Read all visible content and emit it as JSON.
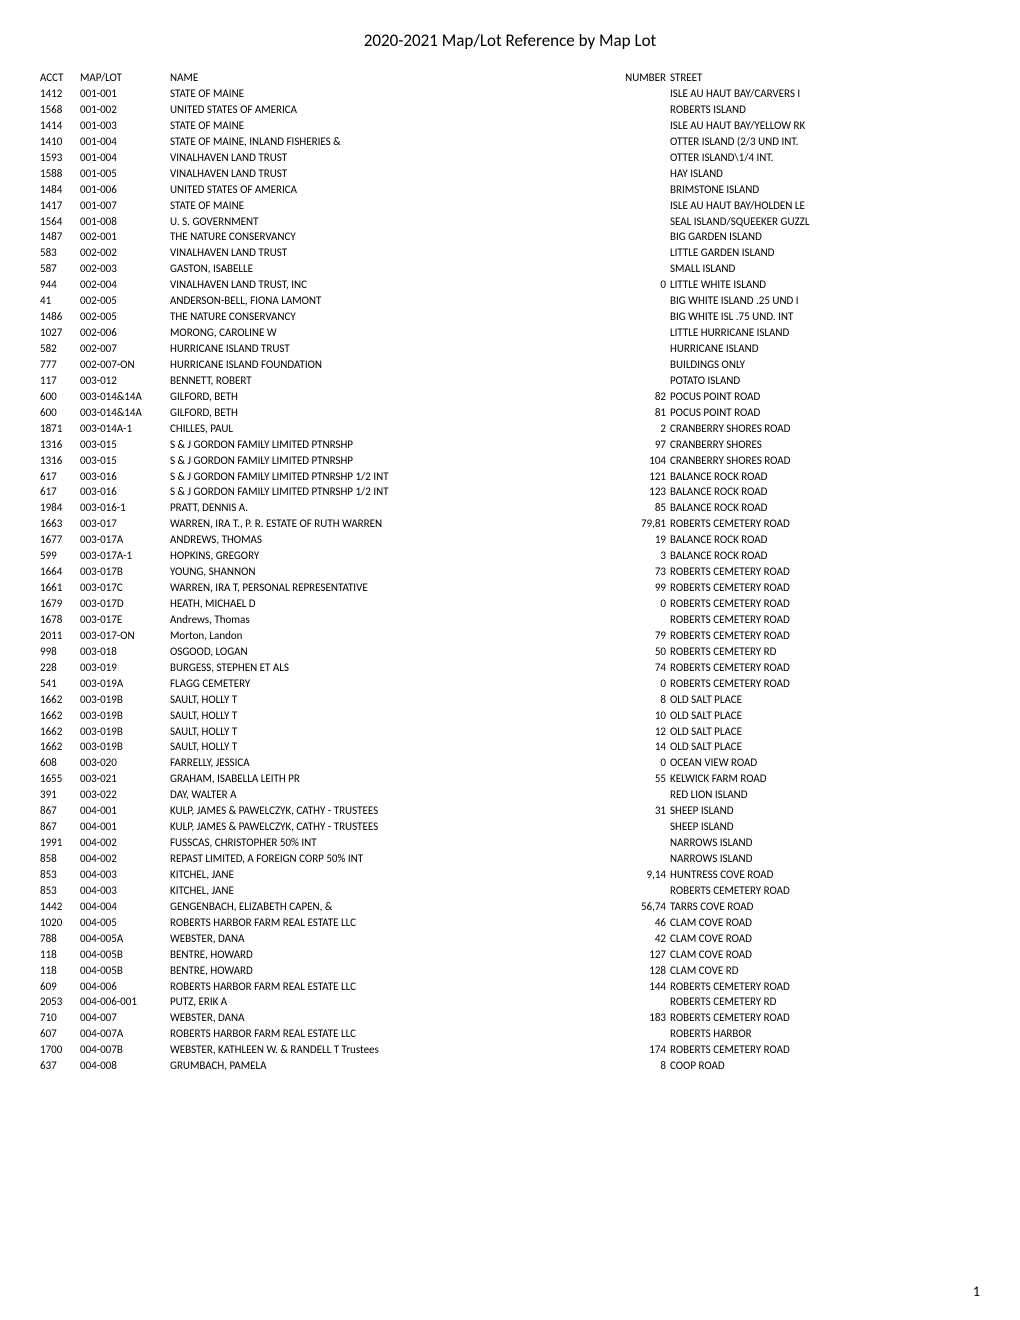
{
  "title": "2020-2021 Map/Lot Reference by Map Lot",
  "headers": {
    "acct": "ACCT",
    "maplot": "MAP/LOT",
    "name": "NAME",
    "number": "NUMBER",
    "street": "STREET"
  },
  "rows": [
    {
      "acct": "1412",
      "maplot": "001-001",
      "name": "STATE OF MAINE",
      "number": "",
      "street": "ISLE AU HAUT BAY/CARVERS I"
    },
    {
      "acct": "1568",
      "maplot": "001-002",
      "name": "UNITED STATES OF AMERICA",
      "number": "",
      "street": "ROBERTS ISLAND"
    },
    {
      "acct": "1414",
      "maplot": "001-003",
      "name": "STATE OF MAINE",
      "number": "",
      "street": "ISLE AU HAUT BAY/YELLOW RK"
    },
    {
      "acct": "1410",
      "maplot": "001-004",
      "name": "STATE OF MAINE, INLAND FISHERIES &",
      "number": "",
      "street": "OTTER ISLAND (2/3 UND INT."
    },
    {
      "acct": "1593",
      "maplot": "001-004",
      "name": "VINALHAVEN LAND TRUST",
      "number": "",
      "street": "OTTER ISLAND\\1/4 INT."
    },
    {
      "acct": "1588",
      "maplot": "001-005",
      "name": "VINALHAVEN LAND TRUST",
      "number": "",
      "street": "HAY ISLAND"
    },
    {
      "acct": "1484",
      "maplot": "001-006",
      "name": "UNITED STATES OF AMERICA",
      "number": "",
      "street": "BRIMSTONE ISLAND"
    },
    {
      "acct": "1417",
      "maplot": "001-007",
      "name": "STATE OF MAINE",
      "number": "",
      "street": "ISLE AU HAUT BAY/HOLDEN LE"
    },
    {
      "acct": "1564",
      "maplot": "001-008",
      "name": "U. S. GOVERNMENT",
      "number": "",
      "street": "SEAL ISLAND/SQUEEKER GUZZL"
    },
    {
      "acct": "1487",
      "maplot": "002-001",
      "name": "THE NATURE CONSERVANCY",
      "number": "",
      "street": "BIG GARDEN ISLAND"
    },
    {
      "acct": "583",
      "maplot": "002-002",
      "name": "VINALHAVEN LAND TRUST",
      "number": "",
      "street": "LITTLE GARDEN ISLAND"
    },
    {
      "acct": "587",
      "maplot": "002-003",
      "name": "GASTON, ISABELLE",
      "number": "",
      "street": "SMALL ISLAND"
    },
    {
      "acct": "944",
      "maplot": "002-004",
      "name": "VINALHAVEN LAND TRUST, INC",
      "number": "0",
      "street": "LITTLE WHITE ISLAND"
    },
    {
      "acct": "41",
      "maplot": "002-005",
      "name": "ANDERSON-BELL, FIONA LAMONT",
      "number": "",
      "street": "BIG WHITE ISLAND .25 UND I"
    },
    {
      "acct": "1486",
      "maplot": "002-005",
      "name": "THE NATURE CONSERVANCY",
      "number": "",
      "street": "BIG WHITE ISL .75 UND. INT"
    },
    {
      "acct": "1027",
      "maplot": "002-006",
      "name": "MORONG, CAROLINE W",
      "number": "",
      "street": "LITTLE HURRICANE ISLAND"
    },
    {
      "acct": "582",
      "maplot": "002-007",
      "name": "HURRICANE ISLAND TRUST",
      "number": "",
      "street": "HURRICANE ISLAND"
    },
    {
      "acct": "777",
      "maplot": "002-007-ON",
      "name": "HURRICANE ISLAND FOUNDATION",
      "number": "",
      "street": "BUILDINGS ONLY"
    },
    {
      "acct": "117",
      "maplot": "003-012",
      "name": "BENNETT, ROBERT",
      "number": "",
      "street": "POTATO ISLAND"
    },
    {
      "acct": "600",
      "maplot": "003-014&14A",
      "name": "GILFORD, BETH",
      "number": "82",
      "street": "POCUS POINT ROAD"
    },
    {
      "acct": "600",
      "maplot": "003-014&14A",
      "name": "GILFORD, BETH",
      "number": "81",
      "street": "POCUS POINT ROAD"
    },
    {
      "acct": "1871",
      "maplot": "003-014A-1",
      "name": "CHILLES, PAUL",
      "number": "2",
      "street": "CRANBERRY SHORES ROAD"
    },
    {
      "acct": "1316",
      "maplot": "003-015",
      "name": "S & J GORDON FAMILY LIMITED PTNRSHP",
      "number": "97",
      "street": "CRANBERRY SHORES"
    },
    {
      "acct": "1316",
      "maplot": "003-015",
      "name": "S & J GORDON FAMILY LIMITED PTNRSHP",
      "number": "104",
      "street": "CRANBERRY SHORES ROAD"
    },
    {
      "acct": "617",
      "maplot": "003-016",
      "name": "S & J GORDON FAMILY LIMITED PTNRSHP 1/2 INT",
      "number": "121",
      "street": "BALANCE ROCK ROAD"
    },
    {
      "acct": "617",
      "maplot": "003-016",
      "name": "S & J GORDON FAMILY LIMITED PTNRSHP 1/2 INT",
      "number": "123",
      "street": "BALANCE ROCK ROAD"
    },
    {
      "acct": "1984",
      "maplot": "003-016-1",
      "name": "PRATT, DENNIS A.",
      "number": "85",
      "street": "BALANCE ROCK ROAD"
    },
    {
      "acct": "1663",
      "maplot": "003-017",
      "name": "WARREN, IRA T., P. R. ESTATE OF RUTH WARREN",
      "number": "79,81",
      "street": "ROBERTS CEMETERY ROAD"
    },
    {
      "acct": "1677",
      "maplot": "003-017A",
      "name": "ANDREWS, THOMAS",
      "number": "19",
      "street": "BALANCE ROCK ROAD"
    },
    {
      "acct": "599",
      "maplot": "003-017A-1",
      "name": "HOPKINS, GREGORY",
      "number": "3",
      "street": "BALANCE ROCK ROAD"
    },
    {
      "acct": "1664",
      "maplot": "003-017B",
      "name": "YOUNG, SHANNON",
      "number": "73",
      "street": "ROBERTS CEMETERY ROAD"
    },
    {
      "acct": "1661",
      "maplot": "003-017C",
      "name": "WARREN, IRA T, PERSONAL REPRESENTATIVE",
      "number": "99",
      "street": "ROBERTS CEMETERY ROAD"
    },
    {
      "acct": "1679",
      "maplot": "003-017D",
      "name": "HEATH, MICHAEL D",
      "number": "0",
      "street": "ROBERTS CEMETERY ROAD"
    },
    {
      "acct": "1678",
      "maplot": "003-017E",
      "name": "Andrews, Thomas",
      "number": "",
      "street": "ROBERTS CEMETERY ROAD"
    },
    {
      "acct": "2011",
      "maplot": "003-017-ON",
      "name": "Morton, Landon",
      "number": "79",
      "street": "ROBERTS CEMETERY ROAD"
    },
    {
      "acct": "998",
      "maplot": "003-018",
      "name": "OSGOOD, LOGAN",
      "number": "50",
      "street": "ROBERTS CEMETERY RD"
    },
    {
      "acct": "228",
      "maplot": "003-019",
      "name": "BURGESS, STEPHEN ET ALS",
      "number": "74",
      "street": "ROBERTS CEMETERY ROAD"
    },
    {
      "acct": "541",
      "maplot": "003-019A",
      "name": "FLAGG CEMETERY",
      "number": "0",
      "street": "ROBERTS CEMETERY ROAD"
    },
    {
      "acct": "1662",
      "maplot": "003-019B",
      "name": "SAULT, HOLLY T",
      "number": "8",
      "street": "OLD SALT PLACE"
    },
    {
      "acct": "1662",
      "maplot": "003-019B",
      "name": "SAULT, HOLLY T",
      "number": "10",
      "street": "OLD SALT PLACE"
    },
    {
      "acct": "1662",
      "maplot": "003-019B",
      "name": "SAULT, HOLLY T",
      "number": "12",
      "street": "OLD SALT PLACE"
    },
    {
      "acct": "1662",
      "maplot": "003-019B",
      "name": "SAULT, HOLLY T",
      "number": "14",
      "street": "OLD SALT PLACE"
    },
    {
      "acct": "608",
      "maplot": "003-020",
      "name": "FARRELLY, JESSICA",
      "number": "0",
      "street": "OCEAN VIEW ROAD"
    },
    {
      "acct": "1655",
      "maplot": "003-021",
      "name": "GRAHAM, ISABELLA LEITH PR",
      "number": "55",
      "street": "KELWICK FARM ROAD"
    },
    {
      "acct": "391",
      "maplot": "003-022",
      "name": "DAY, WALTER A",
      "number": "",
      "street": "RED LION ISLAND"
    },
    {
      "acct": "867",
      "maplot": "004-001",
      "name": "KULP, JAMES & PAWELCZYK, CATHY - TRUSTEES",
      "number": "31",
      "street": "SHEEP ISLAND"
    },
    {
      "acct": "867",
      "maplot": "004-001",
      "name": "KULP, JAMES & PAWELCZYK, CATHY - TRUSTEES",
      "number": "",
      "street": "SHEEP ISLAND"
    },
    {
      "acct": "1991",
      "maplot": "004-002",
      "name": "FUSSCAS, CHRISTOPHER 50% INT",
      "number": "",
      "street": "NARROWS ISLAND"
    },
    {
      "acct": "858",
      "maplot": "004-002",
      "name": "REPAST LIMITED, A FOREIGN CORP 50% INT",
      "number": "",
      "street": "NARROWS ISLAND"
    },
    {
      "acct": "853",
      "maplot": "004-003",
      "name": "KITCHEL, JANE",
      "number": "9,14",
      "street": "HUNTRESS COVE ROAD"
    },
    {
      "acct": "853",
      "maplot": "004-003",
      "name": "KITCHEL, JANE",
      "number": "",
      "street": "ROBERTS CEMETERY ROAD"
    },
    {
      "acct": "1442",
      "maplot": "004-004",
      "name": "GENGENBACH, ELIZABETH CAPEN, &",
      "number": "56,74",
      "street": "TARRS COVE ROAD"
    },
    {
      "acct": "1020",
      "maplot": "004-005",
      "name": "ROBERTS HARBOR FARM REAL ESTATE LLC",
      "number": "46",
      "street": "CLAM COVE ROAD"
    },
    {
      "acct": "788",
      "maplot": "004-005A",
      "name": "WEBSTER, DANA",
      "number": "42",
      "street": "CLAM COVE ROAD"
    },
    {
      "acct": "118",
      "maplot": "004-005B",
      "name": "BENTRE, HOWARD",
      "number": "127",
      "street": "CLAM COVE ROAD"
    },
    {
      "acct": "118",
      "maplot": "004-005B",
      "name": "BENTRE, HOWARD",
      "number": "128",
      "street": "CLAM COVE RD"
    },
    {
      "acct": "609",
      "maplot": "004-006",
      "name": "ROBERTS HARBOR FARM REAL ESTATE LLC",
      "number": "144",
      "street": "ROBERTS CEMETERY ROAD"
    },
    {
      "acct": "2053",
      "maplot": "004-006-001",
      "name": "PUTZ, ERIK A",
      "number": "",
      "street": "ROBERTS CEMETERY RD"
    },
    {
      "acct": "710",
      "maplot": "004-007",
      "name": "WEBSTER, DANA",
      "number": "183",
      "street": "ROBERTS CEMETERY ROAD"
    },
    {
      "acct": "607",
      "maplot": "004-007A",
      "name": "ROBERTS HARBOR FARM REAL ESTATE LLC",
      "number": "",
      "street": "ROBERTS HARBOR"
    },
    {
      "acct": "1700",
      "maplot": "004-007B",
      "name": "WEBSTER, KATHLEEN W. & RANDELL T Trustees",
      "number": "174",
      "street": "ROBERTS CEMETERY ROAD"
    },
    {
      "acct": "637",
      "maplot": "004-008",
      "name": "GRUMBACH, PAMELA",
      "number": "8",
      "street": "COOP ROAD"
    }
  ],
  "page_number": "1",
  "styling": {
    "font_family": "Calibri, Arial, sans-serif",
    "title_fontsize": 17,
    "body_fontsize": 11,
    "text_color": "#000000",
    "background_color": "#ffffff",
    "col_widths": {
      "acct": 40,
      "maplot": 90,
      "name": 450,
      "number": 50,
      "street": 280
    }
  }
}
